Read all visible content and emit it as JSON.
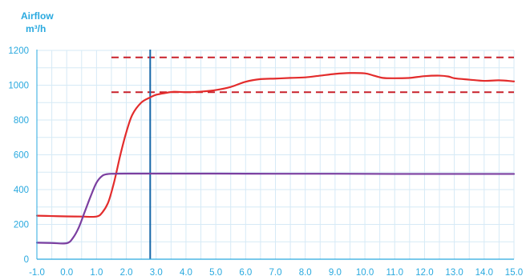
{
  "chart_data": {
    "type": "line",
    "title_lines": [
      "Airflow",
      "m³/h"
    ],
    "xlabel": "",
    "ylabel": "",
    "xlim": [
      -1.0,
      15.0
    ],
    "ylim": [
      0,
      1200
    ],
    "x_ticks": [
      "-1.0",
      "0.0",
      "1.0",
      "2.0",
      "3.0",
      "4.0",
      "5.0",
      "6.0",
      "7.0",
      "8.0",
      "9.0",
      "10.0",
      "11.0",
      "12.0",
      "13.0",
      "14.0",
      "15.0"
    ],
    "y_ticks": [
      "0",
      "200",
      "400",
      "600",
      "800",
      "1000",
      "1200"
    ],
    "grid": true,
    "colors": {
      "red": "#e32c2c",
      "purple": "#7b3fa0",
      "marker": "#1566a8",
      "dashed": "#c8202a",
      "grid": "#d6eaf6",
      "axis": "#29a9df"
    },
    "series": [
      {
        "color_key": "red",
        "x": [
          -1.0,
          -0.5,
          0.0,
          0.5,
          1.0,
          1.2,
          1.4,
          1.6,
          1.8,
          2.0,
          2.2,
          2.5,
          2.8,
          3.0,
          3.3,
          3.6,
          4.0,
          4.5,
          5.0,
          5.5,
          6.0,
          6.5,
          7.0,
          7.5,
          8.0,
          8.5,
          9.0,
          9.5,
          10.0,
          10.3,
          10.6,
          11.0,
          11.5,
          12.0,
          12.5,
          12.8,
          13.0,
          13.5,
          14.0,
          14.5,
          15.0
        ],
        "y": [
          250,
          248,
          246,
          245,
          245,
          270,
          330,
          450,
          600,
          730,
          830,
          900,
          930,
          945,
          955,
          962,
          960,
          963,
          972,
          990,
          1020,
          1035,
          1038,
          1042,
          1045,
          1055,
          1065,
          1070,
          1068,
          1055,
          1042,
          1040,
          1042,
          1052,
          1055,
          1050,
          1040,
          1032,
          1025,
          1028,
          1022
        ]
      },
      {
        "color_key": "purple",
        "x": [
          -1.0,
          -0.5,
          0.0,
          0.2,
          0.4,
          0.6,
          0.8,
          1.0,
          1.2,
          1.4,
          1.6,
          2.0,
          3.0,
          5.0,
          7.0,
          9.0,
          11.0,
          13.0,
          15.0
        ],
        "y": [
          95,
          93,
          92,
          120,
          180,
          270,
          360,
          440,
          480,
          490,
          491,
          492,
          492,
          492,
          491,
          491,
          490,
          490,
          490
        ]
      }
    ],
    "reference_lines": [
      {
        "orientation": "horizontal",
        "style": "dashed",
        "value": 1160,
        "x_from": 1.5,
        "x_to": 15.0
      },
      {
        "orientation": "horizontal",
        "style": "dashed",
        "value": 960,
        "x_from": 1.5,
        "x_to": 15.0
      },
      {
        "orientation": "vertical",
        "style": "solid",
        "value": 2.8
      }
    ]
  }
}
